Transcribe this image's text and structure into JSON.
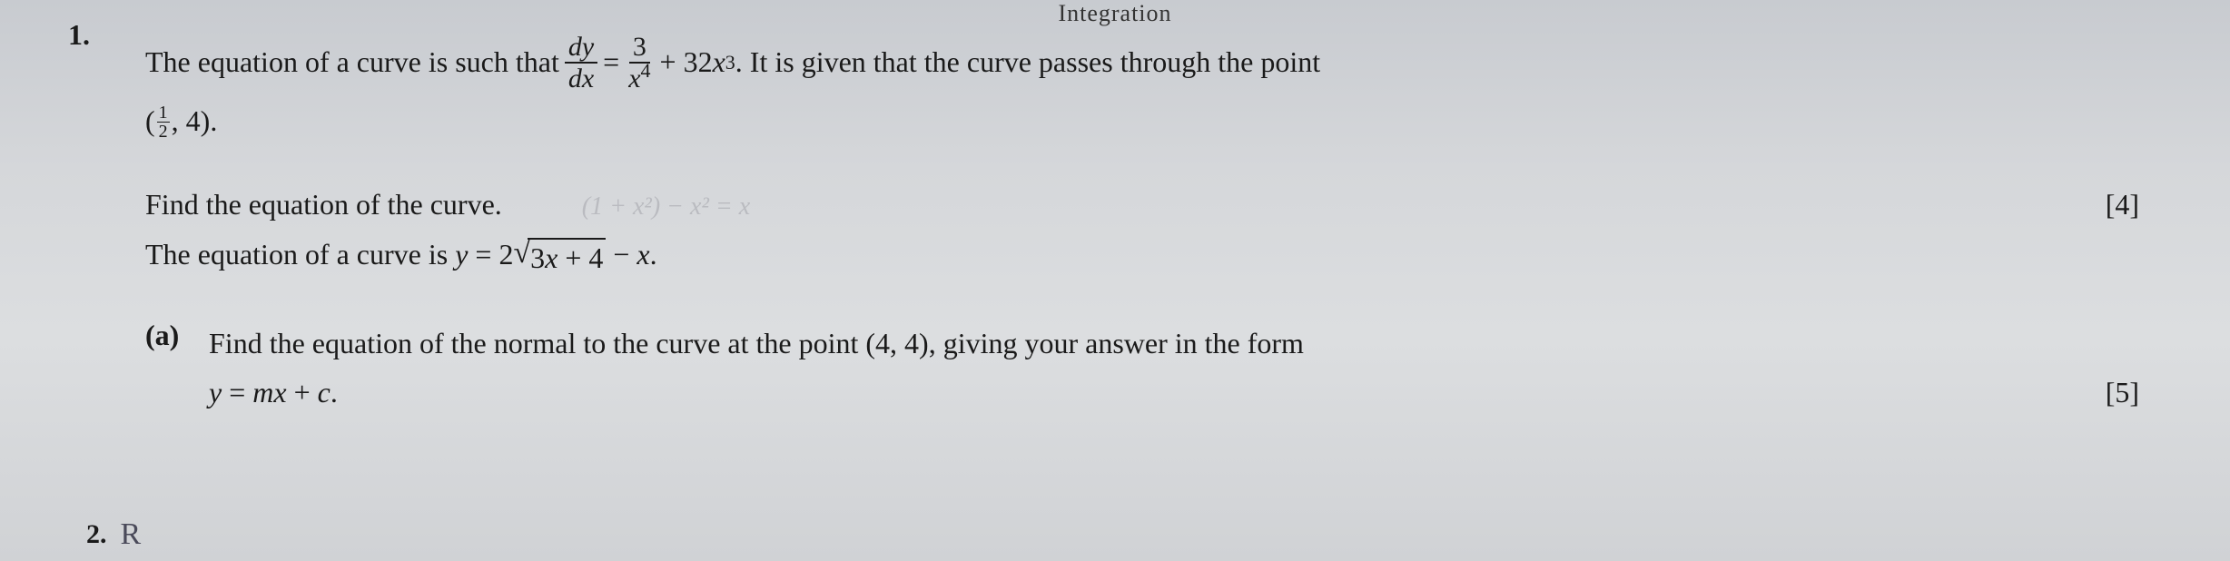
{
  "header_fragment": "Integration",
  "q1": {
    "number": "1.",
    "text_before_fraction": "The equation of a curve is such that ",
    "dy": "dy",
    "dx": "dx",
    "equals": " = ",
    "three": "3",
    "x4_base": "x",
    "x4_exp": "4",
    "plus_32x3_text": " + 32",
    "x3_base": "x",
    "x3_exp": "3",
    "after_deriv": ". It is given that the curve passes through the point",
    "point_open": "(",
    "half_num": "1",
    "half_den": "2",
    "point_rest": ", 4).",
    "find_text": "Find the equation of the curve.",
    "marks1": "[4]",
    "faint": "(1 + x²) − x² = x",
    "second_curve_prefix": "The equation of a curve is ",
    "y_eq": "y",
    "eq_sign": " = 2",
    "sqrt_content": "3x + 4",
    "minus_x": " − ",
    "minus_x_var": "x",
    "period": ".",
    "part_a_label": "(a)",
    "part_a_text1": "Find the equation of the normal to the curve at the point (4, 4), giving your answer in the form",
    "part_a_eq_y": "y",
    "part_a_eq_mid": " = ",
    "part_a_eq_m": "m",
    "part_a_eq_x": "x",
    "part_a_eq_plus": " + ",
    "part_a_eq_c": "c",
    "part_a_eq_end": ".",
    "marks2": "[5]"
  },
  "q2": {
    "number": "2.",
    "handwritten": "R"
  }
}
